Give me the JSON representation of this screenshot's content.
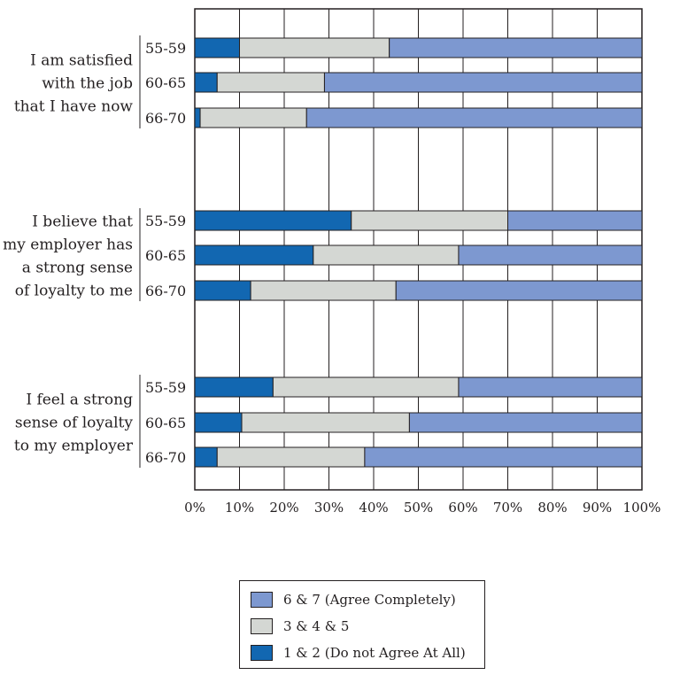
{
  "chart_data": {
    "type": "bar",
    "orientation": "horizontal",
    "stacked": true,
    "xlim": [
      0,
      100
    ],
    "xticks": [
      "0%",
      "10%",
      "20%",
      "30%",
      "40%",
      "50%",
      "60%",
      "70%",
      "80%",
      "90%",
      "100%"
    ],
    "grid": true,
    "legend_position": "bottom-center",
    "groups": [
      {
        "label_lines": [
          "I am satisfied",
          "with the job",
          "that I have now"
        ],
        "rows": [
          {
            "age": "55-59",
            "values": [
              10,
              33.5,
              56.5
            ]
          },
          {
            "age": "60-65",
            "values": [
              5,
              24,
              71
            ]
          },
          {
            "age": "66-70",
            "values": [
              1.2,
              23.8,
              75
            ]
          }
        ]
      },
      {
        "label_lines": [
          "I believe that",
          "my employer has",
          "a strong sense",
          "of loyalty to me"
        ],
        "rows": [
          {
            "age": "55-59",
            "values": [
              35,
              35,
              30
            ]
          },
          {
            "age": "60-65",
            "values": [
              26.5,
              32.5,
              41
            ]
          },
          {
            "age": "66-70",
            "values": [
              12.5,
              32.5,
              55
            ]
          }
        ]
      },
      {
        "label_lines": [
          "I feel a strong",
          "sense of loyalty",
          "to my employer"
        ],
        "rows": [
          {
            "age": "55-59",
            "values": [
              17.5,
              41.5,
              41
            ]
          },
          {
            "age": "60-65",
            "values": [
              10.5,
              37.5,
              52
            ]
          },
          {
            "age": "66-70",
            "values": [
              5,
              33,
              62
            ]
          }
        ]
      }
    ],
    "series": [
      {
        "name": "1 & 2 (Do not Agree At All)",
        "color": "#1267b1"
      },
      {
        "name": "3 & 4 & 5",
        "color": "#d4d7d3"
      },
      {
        "name": "6 & 7 (Agree Completely)",
        "color": "#7d98d0"
      }
    ]
  },
  "legend": {
    "items": [
      {
        "label": "6 & 7 (Agree Completely)",
        "color": "#7d98d0"
      },
      {
        "label": "3 & 4 & 5",
        "color": "#d4d7d3"
      },
      {
        "label": "1 & 2 (Do not Agree At All)",
        "color": "#1267b1"
      }
    ]
  }
}
